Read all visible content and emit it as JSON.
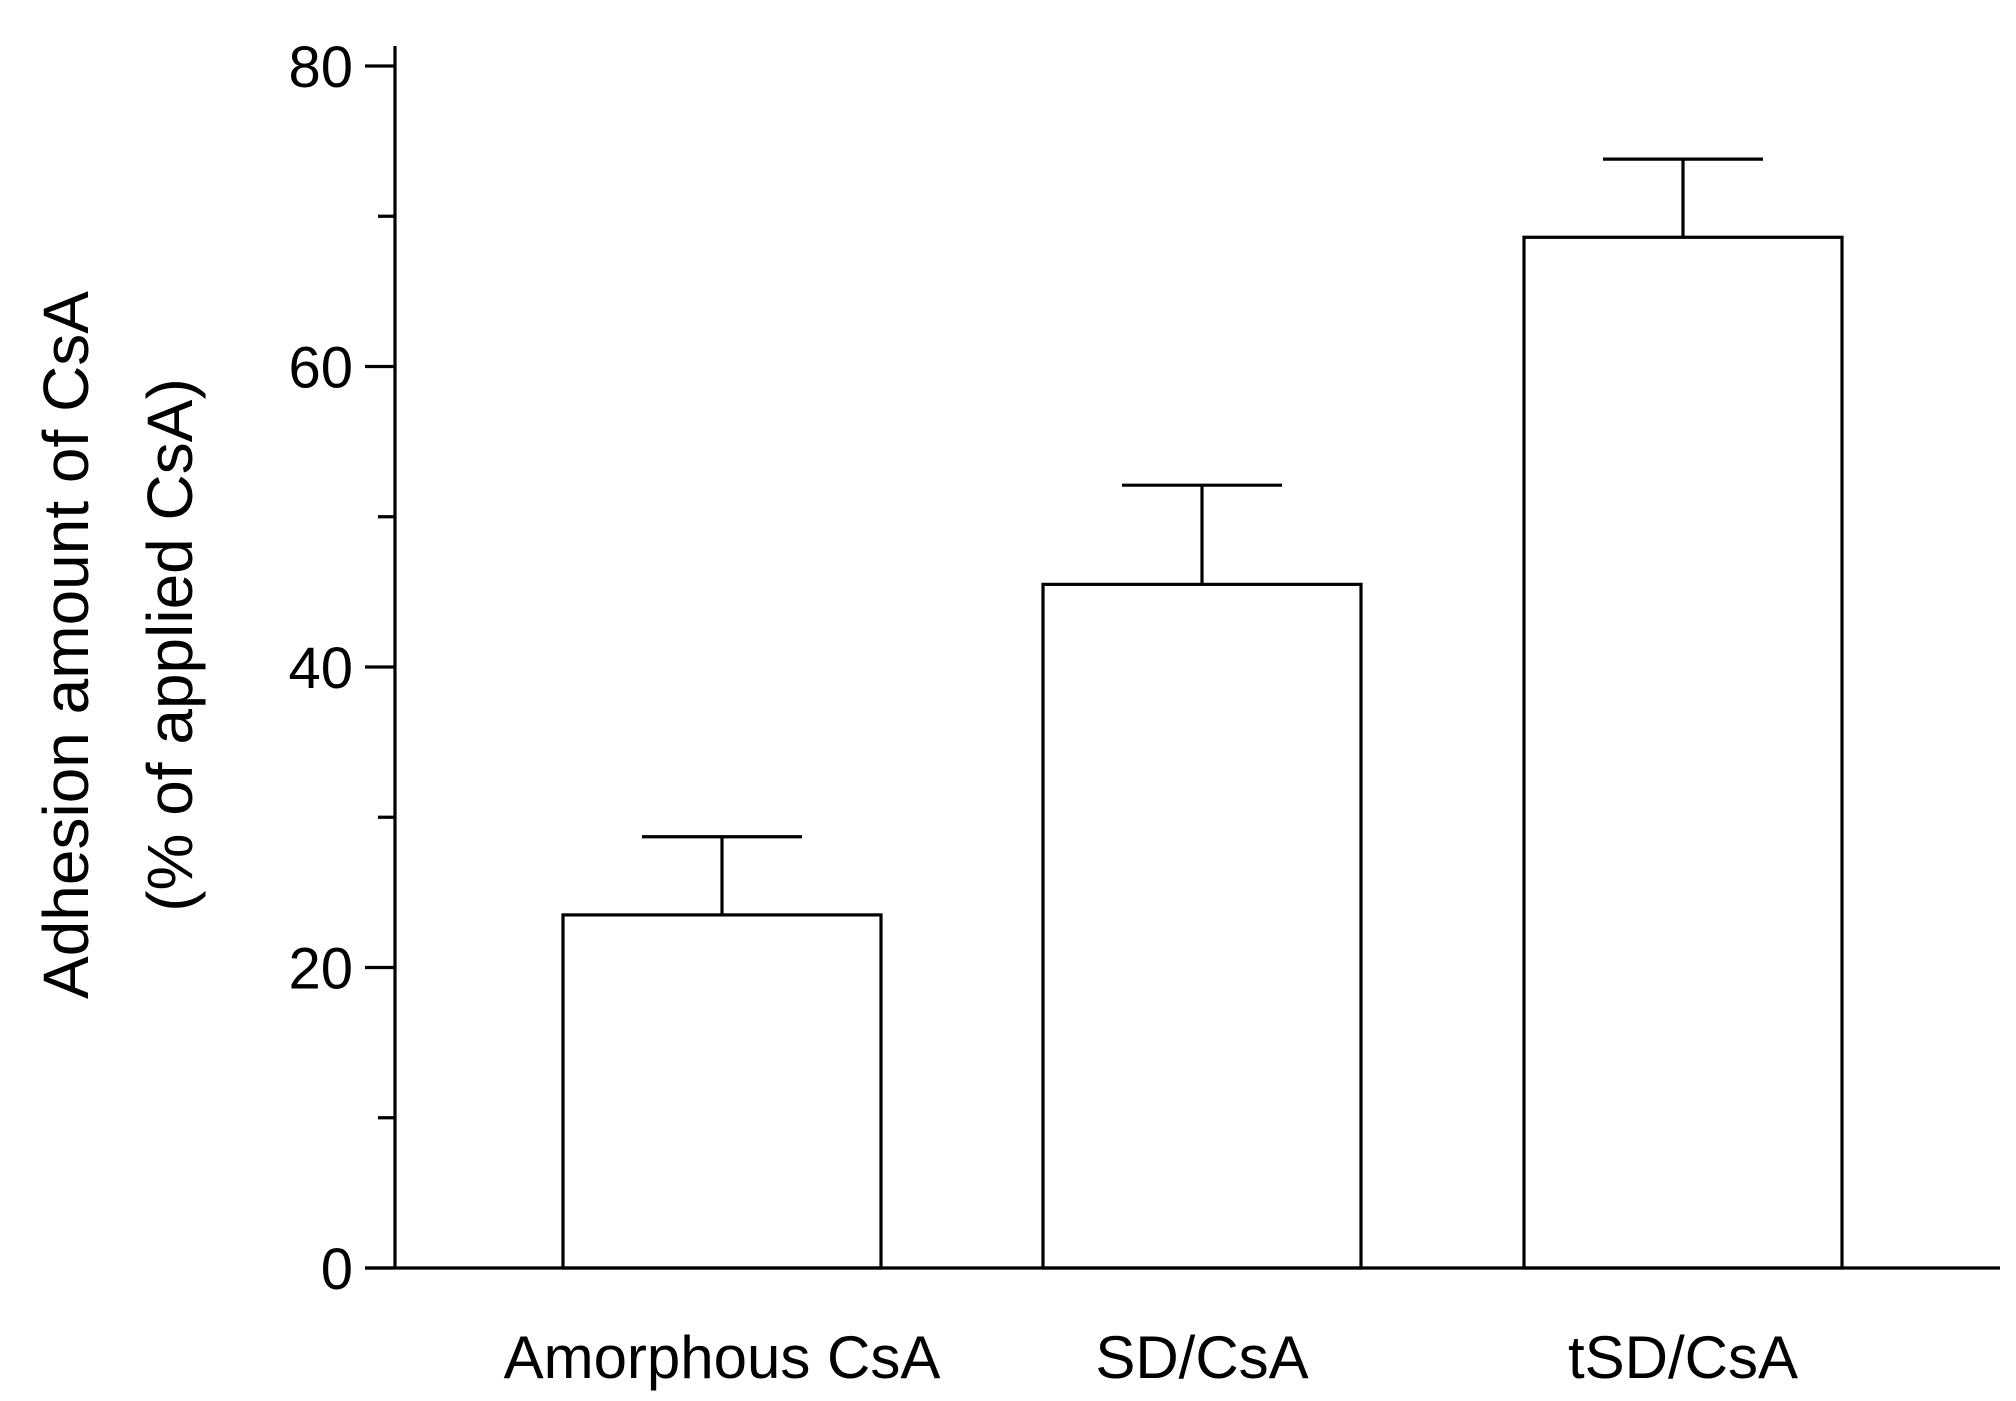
{
  "chart_data": {
    "type": "bar",
    "title": "",
    "xlabel": "",
    "ylabel": {
      "line1": "Adhesion amount of CsA",
      "line2": "(% of applied CsA)"
    },
    "categories": [
      "Amorphous CsA",
      "SD/CsA",
      "tSD/CsA"
    ],
    "values": [
      23.5,
      45.5,
      68.6
    ],
    "error_upper": [
      5.2,
      6.6,
      5.2
    ],
    "ylim": [
      0,
      80
    ],
    "yticks_major": [
      0,
      20,
      40,
      60,
      80
    ],
    "yticks_major_labels": [
      "0",
      "20",
      "40",
      "60",
      "80"
    ],
    "yticks_minor": [
      10,
      30,
      50,
      70
    ],
    "grid": false,
    "legend": "none",
    "bar_fill": "#ffffff",
    "stroke_color": "#000000"
  }
}
